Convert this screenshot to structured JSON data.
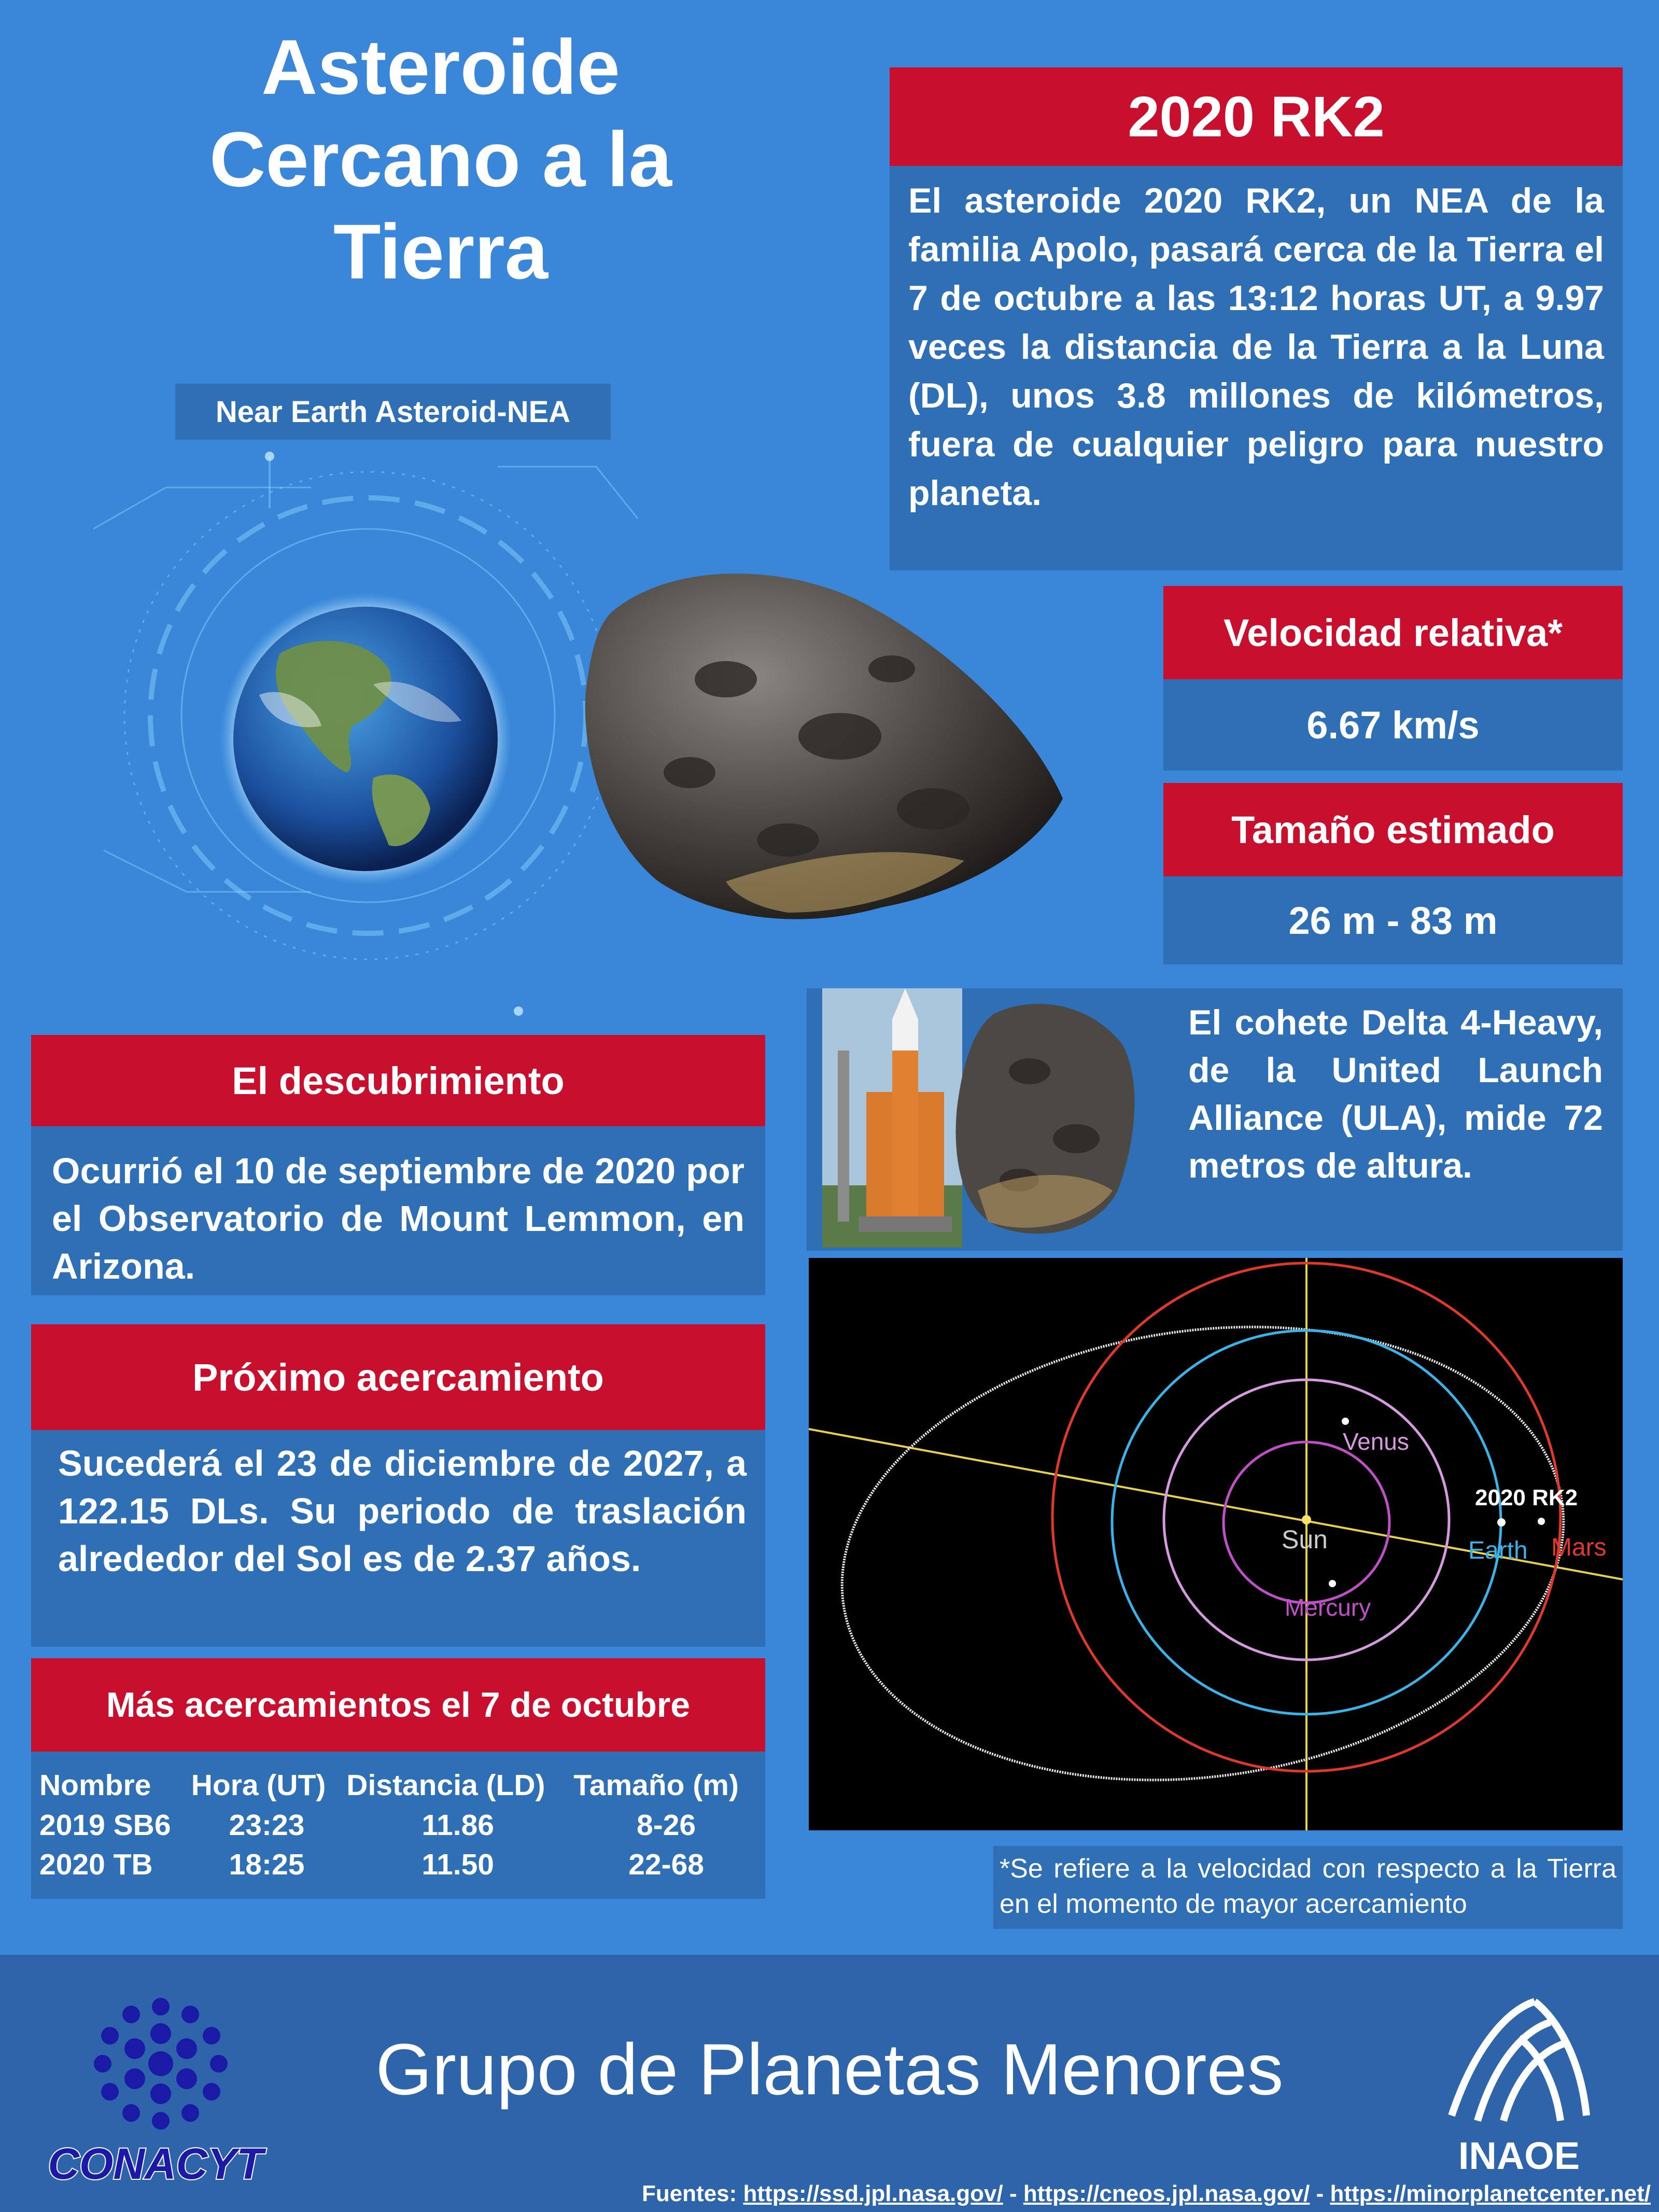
{
  "header": {
    "title_lines": [
      "Asteroide",
      "Cercano a la",
      "Tierra"
    ],
    "subtitle": "Near Earth Asteroid-NEA"
  },
  "rk2": {
    "title": "2020 RK2",
    "body": "El  asteroide 2020 RK2, un NEA de la familia Apolo, pasará cerca de la Tierra el 7 de octubre a las 13:12 horas UT, a 9.97 veces la distancia de la Tierra a la Luna (DL), unos 3.8 millones de kilómetros, fuera de cualquier peligro para nuestro planeta."
  },
  "velocity": {
    "title": "Velocidad relativa*",
    "value": "6.67 km/s"
  },
  "size": {
    "title": "Tamaño estimado",
    "value": "26 m - 83 m"
  },
  "rocket": {
    "text": "El cohete Delta 4-Heavy, de la United Launch Alliance (ULA), mide 72 metros de altura."
  },
  "discovery": {
    "title": "El descubrimiento",
    "body": "Ocurrió el 10 de septiembre de 2020 por el Observatorio de Mount Lemmon, en Arizona."
  },
  "next": {
    "title": "Próximo acercamiento",
    "body": "Sucederá el 23 de diciembre de 2027, a 122.15 DLs. Su periodo de traslación alrededor del Sol es de 2.37 años."
  },
  "more": {
    "title": "Más acercamientos el 7 de octubre",
    "headers": [
      "Nombre",
      "Hora (UT)",
      "Distancia (LD)",
      "Tamaño (m)"
    ],
    "rows": [
      [
        "2019 SB6",
        "23:23",
        "11.86",
        "8-26"
      ],
      [
        "2020 TB",
        "18:25",
        "11.50",
        "22-68"
      ]
    ]
  },
  "orbit": {
    "labels": {
      "venus": "Venus",
      "sun": "Sun",
      "mercury": "Mercury",
      "earth": "Earth",
      "mars": "Mars",
      "asteroid": "2020 RK2"
    },
    "colors": {
      "asteroid": "#e8e8e8",
      "mars": "#e0392b",
      "earth": "#3ab4e8",
      "venus": "#d79ae0",
      "mercury": "#c04fc8",
      "axis": "#e8d24a"
    }
  },
  "footnote": "*Se refiere a la velocidad con respecto a la Tierra en el momento de mayor acercamiento",
  "footer": {
    "group": "Grupo de Planetas Menores",
    "conacyt": "CONACYT",
    "inaoe": "INAOE",
    "sources_label": "Fuentes:",
    "sep": " - ",
    "sources": [
      "https://ssd.jpl.nasa.gov/",
      "https://cneos.jpl.nasa.gov/",
      "https://minorplanetcenter.net/"
    ]
  },
  "colors": {
    "background": "#3a86d8",
    "panel": "#2f6fb5",
    "accent_red": "#c8102e",
    "footer": "#2e64aa"
  }
}
